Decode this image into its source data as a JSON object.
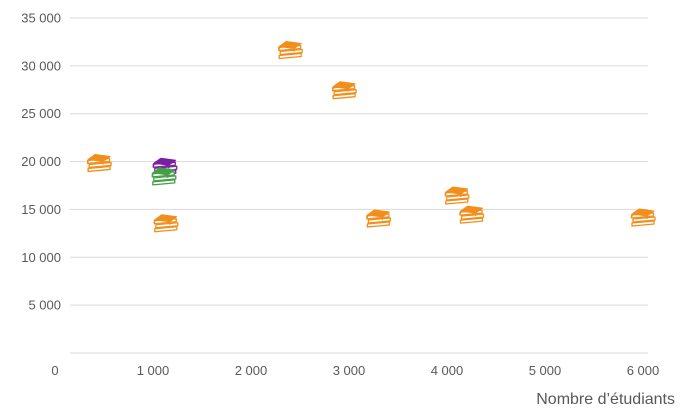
{
  "chart_data": {
    "type": "scatter",
    "title": "",
    "xlabel": "Nombre d’étudiants",
    "ylabel": "",
    "xlim": [
      0,
      6000
    ],
    "ylim": [
      0,
      35000
    ],
    "grid": "horizontal",
    "x_ticks": [
      {
        "value": 0,
        "label": "0"
      },
      {
        "value": 1000,
        "label": "1 000"
      },
      {
        "value": 2000,
        "label": "2 000"
      },
      {
        "value": 3000,
        "label": "3 000"
      },
      {
        "value": 4000,
        "label": "4 000"
      },
      {
        "value": 5000,
        "label": "5 000"
      },
      {
        "value": 6000,
        "label": "6 000"
      }
    ],
    "y_ticks": [
      {
        "value": 5000,
        "label": "5 000"
      },
      {
        "value": 10000,
        "label": "10 000"
      },
      {
        "value": 15000,
        "label": "15 000"
      },
      {
        "value": 20000,
        "label": "20 000"
      },
      {
        "value": 25000,
        "label": "25 000"
      },
      {
        "value": 30000,
        "label": "30 000"
      },
      {
        "value": 35000,
        "label": "35 000"
      }
    ],
    "marker": "book-stack-icon",
    "series": [
      {
        "color": "#f28e1c",
        "points": [
          {
            "x": 450,
            "y": 19700
          },
          {
            "x": 1130,
            "y": 13400
          },
          {
            "x": 2400,
            "y": 31500
          },
          {
            "x": 2950,
            "y": 27300
          },
          {
            "x": 3300,
            "y": 13900
          },
          {
            "x": 4100,
            "y": 16300
          },
          {
            "x": 4250,
            "y": 14300
          },
          {
            "x": 6000,
            "y": 14000
          }
        ]
      },
      {
        "color": "#7b1fa2",
        "points": [
          {
            "x": 1120,
            "y": 19300
          }
        ]
      },
      {
        "color": "#43a047",
        "points": [
          {
            "x": 1110,
            "y": 18300
          }
        ]
      }
    ]
  }
}
